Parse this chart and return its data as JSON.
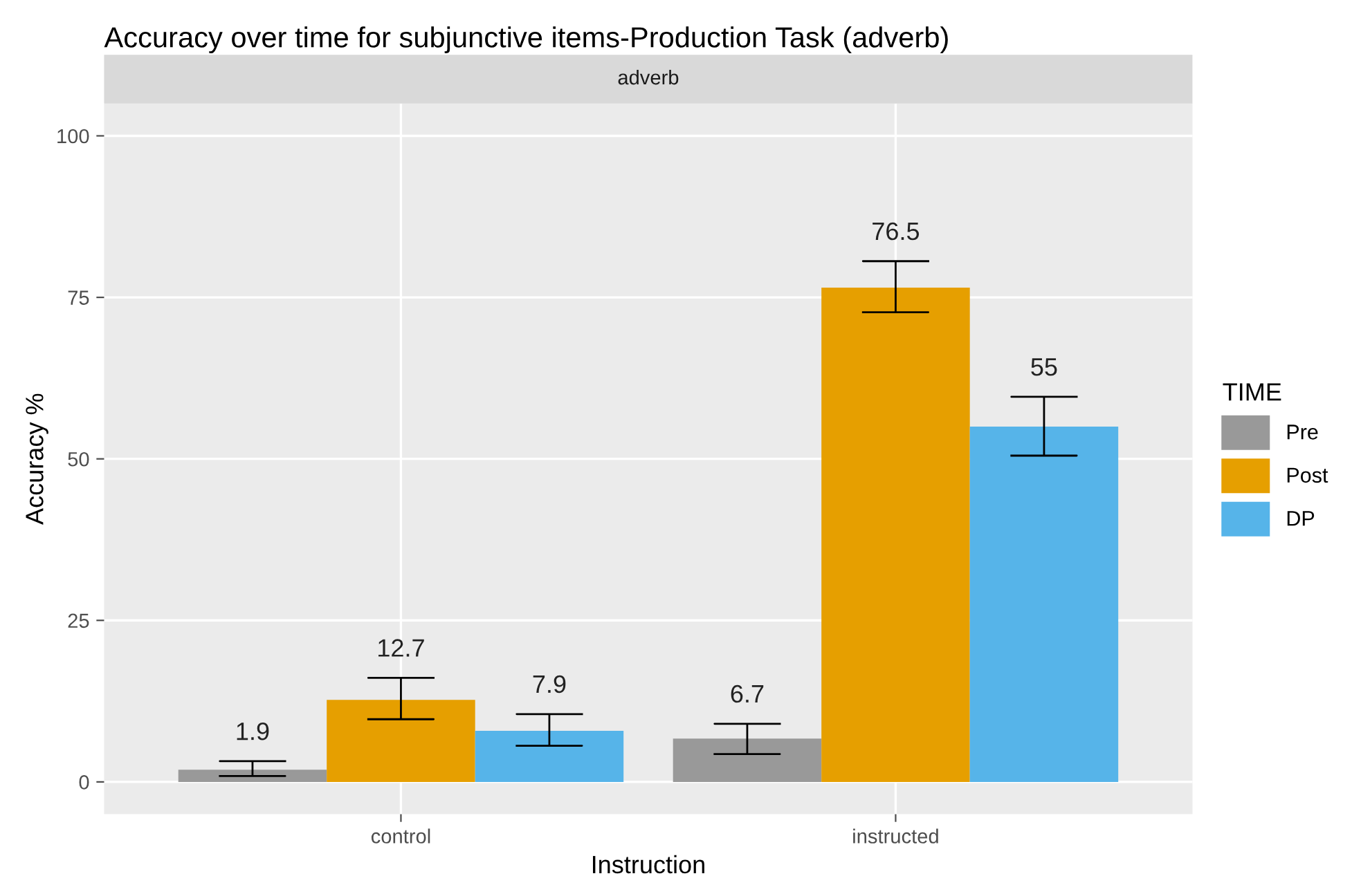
{
  "chart_data": {
    "type": "bar",
    "title": "Accuracy over time for subjunctive items-Production Task (adverb)",
    "subtitle": "adverb",
    "xlabel": "Instruction",
    "ylabel": "Accuracy %",
    "legend_title": "TIME",
    "categories": [
      "control",
      "instructed"
    ],
    "series": [
      {
        "name": "Pre",
        "color": "#999999",
        "values": [
          1.9,
          6.7
        ],
        "errors": [
          [
            0.9,
            3.2
          ],
          [
            4.3,
            9.0
          ]
        ]
      },
      {
        "name": "Post",
        "color": "#e69f00",
        "values": [
          12.7,
          76.5
        ],
        "errors": [
          [
            9.7,
            16.1
          ],
          [
            72.7,
            80.6
          ]
        ]
      },
      {
        "name": "DP",
        "color": "#56b4e9",
        "values": [
          7.9,
          55
        ],
        "errors": [
          [
            5.6,
            10.5
          ],
          [
            50.5,
            59.6
          ]
        ]
      }
    ],
    "ylim": [
      -5,
      105
    ],
    "yticks": [
      0,
      25,
      50,
      75,
      100
    ],
    "grid": true,
    "legend": "right",
    "data_labels": true
  }
}
